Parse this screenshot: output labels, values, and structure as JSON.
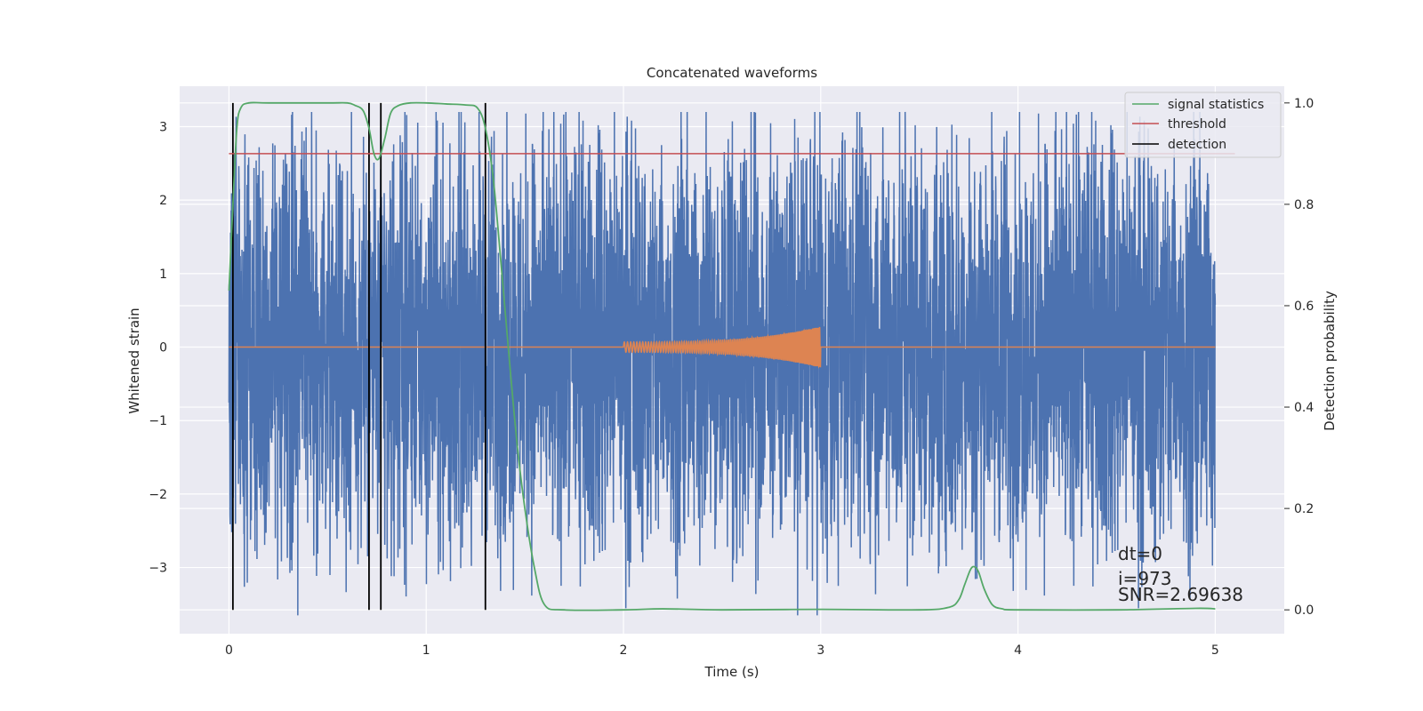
{
  "chart_data": {
    "type": "line",
    "title": "Concatenated waveforms",
    "xlabel": "Time (s)",
    "ylabel": "Whitened strain",
    "y2label": "Detection probability",
    "xlim": [
      -0.25,
      5.35
    ],
    "ylim": [
      -3.9,
      3.55
    ],
    "y2lim": [
      -0.047,
      1.033
    ],
    "x_ticks": [
      0,
      1,
      2,
      3,
      4,
      5
    ],
    "y_ticks": [
      -3,
      -2,
      -1,
      0,
      1,
      2,
      3
    ],
    "y2_ticks": [
      0.0,
      0.2,
      0.4,
      0.6,
      0.8,
      1.0
    ],
    "grid": true,
    "legend_position": "top-right",
    "legend": [
      {
        "label": "signal statistics",
        "color": "#55a868"
      },
      {
        "label": "threshold",
        "color": "#c44e52"
      },
      {
        "label": "detection",
        "color": "#000000"
      }
    ],
    "series": [
      {
        "name": "whitened strain (noise)",
        "axis": "left",
        "color": "#4c72b0",
        "x_range": [
          0,
          5
        ],
        "amplitude_envelope": 2.4,
        "peak_extremes": {
          "max": 3.2,
          "min": -3.65
        }
      },
      {
        "name": "injected waveform",
        "axis": "left",
        "color": "#dd8452",
        "x_range": [
          2.0,
          3.0
        ],
        "start_amplitude": 0.07,
        "end_amplitude": 0.28
      },
      {
        "name": "signal statistics",
        "axis": "right",
        "color": "#55a868",
        "x": [
          0.0,
          0.02,
          0.04,
          0.06,
          0.1,
          0.2,
          0.5,
          0.6,
          0.64,
          0.68,
          0.71,
          0.735,
          0.76,
          0.79,
          0.82,
          0.86,
          0.92,
          1.0,
          1.1,
          1.2,
          1.26,
          1.3,
          1.34,
          1.38,
          1.42,
          1.46,
          1.5,
          1.55,
          1.6,
          1.7,
          2.0,
          2.2,
          2.5,
          3.0,
          3.5,
          3.65,
          3.7,
          3.73,
          3.76,
          3.78,
          3.8,
          3.83,
          3.87,
          3.92,
          4.0,
          4.5,
          4.9,
          5.0
        ],
        "y": [
          0.63,
          0.8,
          0.95,
          0.99,
          1.0,
          1.0,
          1.0,
          1.0,
          0.995,
          0.985,
          0.95,
          0.9,
          0.89,
          0.93,
          0.98,
          0.995,
          1.0,
          1.0,
          0.998,
          0.996,
          0.99,
          0.95,
          0.85,
          0.68,
          0.5,
          0.33,
          0.2,
          0.08,
          0.01,
          0.0,
          0.0,
          0.002,
          0.0,
          0.001,
          0.0,
          0.005,
          0.02,
          0.05,
          0.08,
          0.085,
          0.075,
          0.04,
          0.01,
          0.002,
          0.0,
          0.0,
          0.003,
          0.002
        ]
      },
      {
        "name": "threshold",
        "axis": "right",
        "color": "#c44e52",
        "x": [
          0.0,
          5.1
        ],
        "y": [
          0.9,
          0.9
        ]
      }
    ],
    "detections": [
      0.02,
      0.71,
      0.77,
      1.3
    ],
    "annotations": [
      "dt=0",
      "i=973",
      "SNR=2.69638"
    ]
  }
}
